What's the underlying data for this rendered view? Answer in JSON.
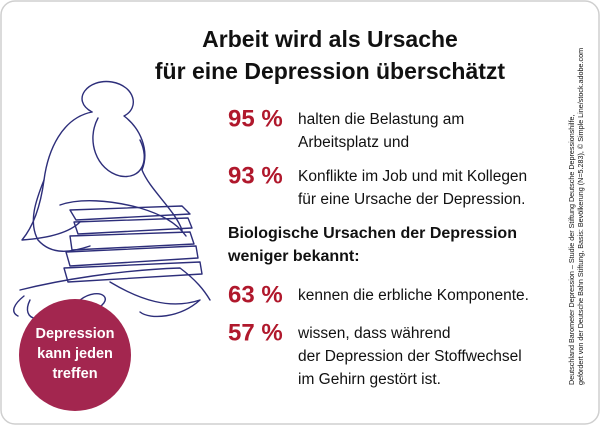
{
  "title": [
    "Arbeit wird als Ursache",
    "für eine Depression überschätzt"
  ],
  "stats_top": [
    {
      "percent": "95 %",
      "text": [
        "halten die Belastung am",
        "Arbeitsplatz und"
      ]
    },
    {
      "percent": "93 %",
      "text": [
        "Konflikte im Job und mit Kollegen",
        "für eine Ursache der Depression."
      ]
    }
  ],
  "subheading": [
    "Biologische Ursachen der Depression",
    "weniger bekannt:"
  ],
  "stats_bottom": [
    {
      "percent": "63 %",
      "text": [
        "kennen die erbliche Komponente."
      ]
    },
    {
      "percent": "57 %",
      "text": [
        "wissen, dass während",
        "der Depression der Stoffwechsel",
        "im Gehirn gestört ist."
      ]
    }
  ],
  "badge": [
    "Depression",
    "kann jeden",
    "treffen"
  ],
  "source": [
    "Deutschland Barometer Depression – Studie der Stiftung Deutsche Depressionshilfe,",
    "gefördert von der Deutsche Bahn Stiftung, Basis: Bevölkerung (N=5.283), © Simple Line/stock.adobe.com"
  ]
}
